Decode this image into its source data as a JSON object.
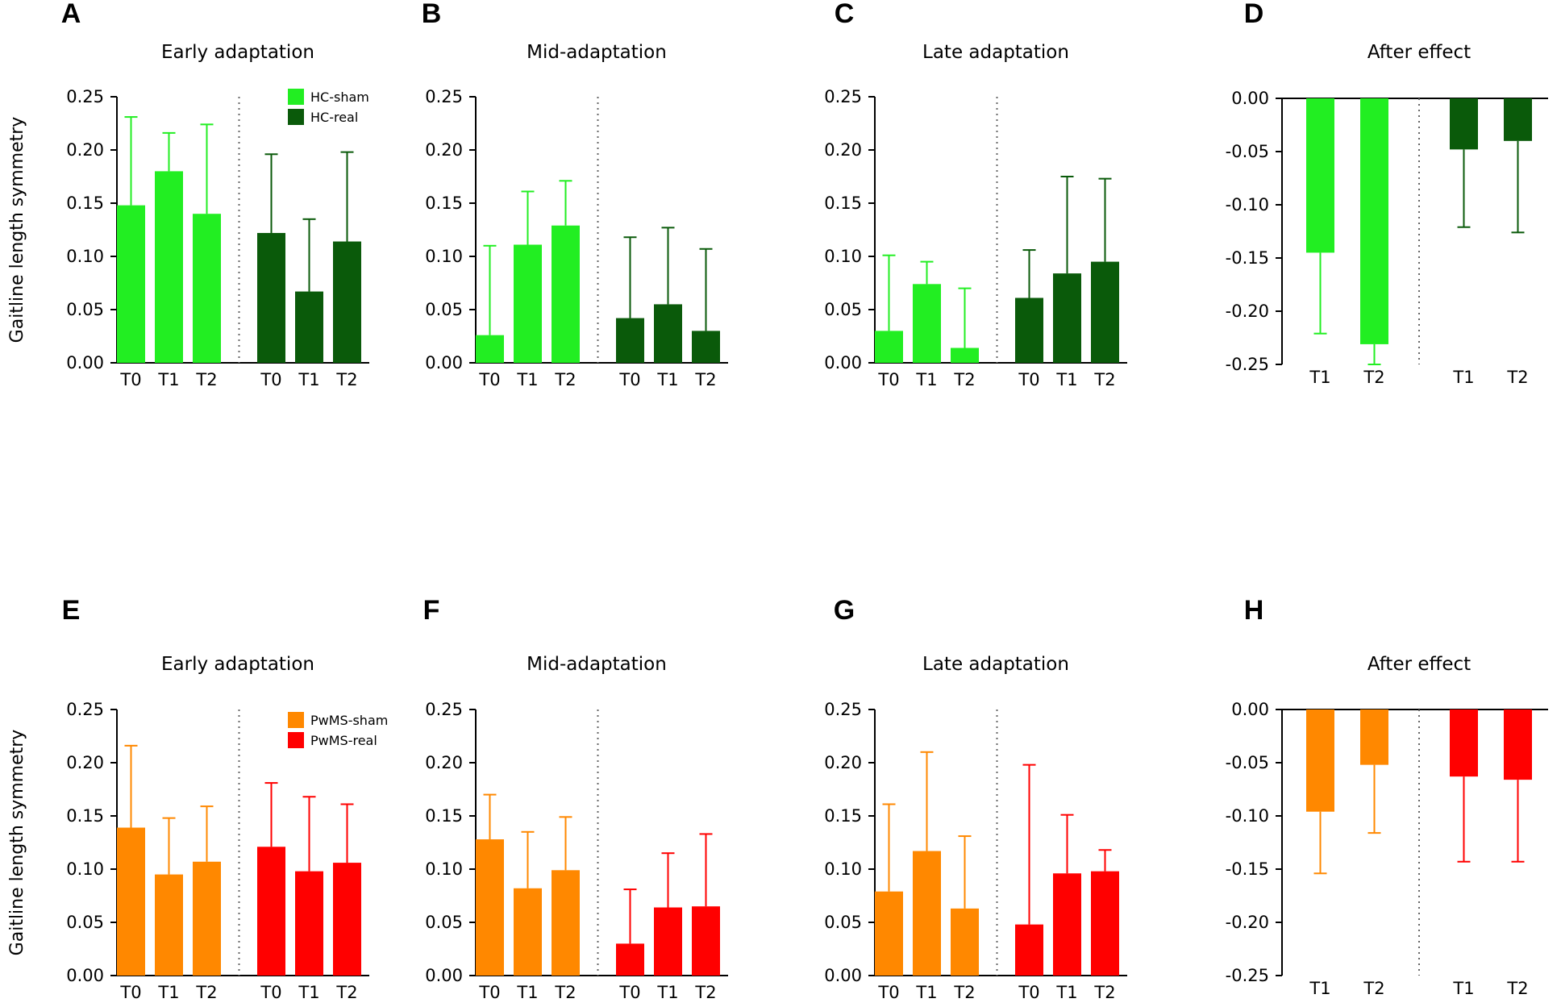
{
  "figure": {
    "colors": {
      "hc_sham": "#22ee22",
      "hc_real": "#0a5a0a",
      "pwms_sham": "#ff8800",
      "pwms_real": "#ff0000",
      "axis": "#000000",
      "divider": "#666666"
    }
  },
  "chart_data": [
    {
      "type": "bar",
      "panel": "A",
      "title": "Early adaptation",
      "ylabel": "Gaitline length symmetry",
      "ylim": [
        0,
        0.25
      ],
      "yticks": [
        "0.25",
        "0.20",
        "0.15",
        "0.10",
        "0.05",
        "0.00"
      ],
      "legend": [
        {
          "name": "HC-sham",
          "color": "#22ee22"
        },
        {
          "name": "HC-real",
          "color": "#0a5a0a"
        }
      ],
      "series": [
        {
          "name": "HC-sham",
          "color": "#22ee22",
          "categories": [
            "T0",
            "T1",
            "T2"
          ],
          "values": [
            0.148,
            0.18,
            0.14
          ],
          "errors": [
            0.083,
            0.036,
            0.084
          ]
        },
        {
          "name": "HC-real",
          "color": "#0a5a0a",
          "categories": [
            "T0",
            "T1",
            "T2"
          ],
          "values": [
            0.122,
            0.067,
            0.114
          ],
          "errors": [
            0.074,
            0.068,
            0.084
          ]
        }
      ]
    },
    {
      "type": "bar",
      "panel": "B",
      "title": "Mid-adaptation",
      "ylabel": "",
      "ylim": [
        0,
        0.25
      ],
      "yticks": [
        "0.25",
        "0.20",
        "0.15",
        "0.10",
        "0.05",
        "0.00"
      ],
      "legend": [],
      "series": [
        {
          "name": "HC-sham",
          "color": "#22ee22",
          "categories": [
            "T0",
            "T1",
            "T2"
          ],
          "values": [
            0.026,
            0.111,
            0.129
          ],
          "errors": [
            0.084,
            0.05,
            0.042
          ]
        },
        {
          "name": "HC-real",
          "color": "#0a5a0a",
          "categories": [
            "T0",
            "T1",
            "T2"
          ],
          "values": [
            0.042,
            0.055,
            0.03
          ],
          "errors": [
            0.076,
            0.072,
            0.077
          ]
        }
      ]
    },
    {
      "type": "bar",
      "panel": "C",
      "title": "Late adaptation",
      "ylabel": "",
      "ylim": [
        0,
        0.25
      ],
      "yticks": [
        "0.25",
        "0.20",
        "0.15",
        "0.10",
        "0.05",
        "0.00"
      ],
      "legend": [],
      "series": [
        {
          "name": "HC-sham",
          "color": "#22ee22",
          "categories": [
            "T0",
            "T1",
            "T2"
          ],
          "values": [
            0.03,
            0.074,
            0.014
          ],
          "errors": [
            0.071,
            0.021,
            0.056
          ]
        },
        {
          "name": "HC-real",
          "color": "#0a5a0a",
          "categories": [
            "T0",
            "T1",
            "T2"
          ],
          "values": [
            0.061,
            0.084,
            0.095
          ],
          "errors": [
            0.045,
            0.091,
            0.078
          ]
        }
      ]
    },
    {
      "type": "bar",
      "panel": "D",
      "title": "After effect",
      "ylabel": "",
      "ylim": [
        -0.25,
        0
      ],
      "yticks": [
        "0.00",
        "-0.05",
        "-0.10",
        "-0.15",
        "-0.20",
        "-0.25"
      ],
      "legend": [],
      "series": [
        {
          "name": "HC-sham",
          "color": "#22ee22",
          "categories": [
            "T1",
            "T2"
          ],
          "values": [
            -0.145,
            -0.231
          ],
          "errors": [
            0.076,
            0.019
          ]
        },
        {
          "name": "HC-real",
          "color": "#0a5a0a",
          "categories": [
            "T1",
            "T2"
          ],
          "values": [
            -0.048,
            -0.04
          ],
          "errors": [
            0.073,
            0.086
          ]
        }
      ]
    },
    {
      "type": "bar",
      "panel": "E",
      "title": "Early adaptation",
      "ylabel": "Gaitline length symmetry",
      "ylim": [
        0,
        0.25
      ],
      "yticks": [
        "0.25",
        "0.20",
        "0.15",
        "0.10",
        "0.05",
        "0.00"
      ],
      "legend": [
        {
          "name": "PwMS-sham",
          "color": "#ff8800"
        },
        {
          "name": "PwMS-real",
          "color": "#ff0000"
        }
      ],
      "series": [
        {
          "name": "PwMS-sham",
          "color": "#ff8800",
          "categories": [
            "T0",
            "T1",
            "T2"
          ],
          "values": [
            0.139,
            0.095,
            0.107
          ],
          "errors": [
            0.077,
            0.053,
            0.052
          ]
        },
        {
          "name": "PwMS-real",
          "color": "#ff0000",
          "categories": [
            "T0",
            "T1",
            "T2"
          ],
          "values": [
            0.121,
            0.098,
            0.106
          ],
          "errors": [
            0.06,
            0.07,
            0.055
          ]
        }
      ]
    },
    {
      "type": "bar",
      "panel": "F",
      "title": "Mid-adaptation",
      "ylabel": "",
      "ylim": [
        0,
        0.25
      ],
      "yticks": [
        "0.25",
        "0.20",
        "0.15",
        "0.10",
        "0.05",
        "0.00"
      ],
      "legend": [],
      "series": [
        {
          "name": "PwMS-sham",
          "color": "#ff8800",
          "categories": [
            "T0",
            "T1",
            "T2"
          ],
          "values": [
            0.128,
            0.082,
            0.099
          ],
          "errors": [
            0.042,
            0.053,
            0.05
          ]
        },
        {
          "name": "PwMS-real",
          "color": "#ff0000",
          "categories": [
            "T0",
            "T1",
            "T2"
          ],
          "values": [
            0.03,
            0.064,
            0.065
          ],
          "errors": [
            0.051,
            0.051,
            0.068
          ]
        }
      ]
    },
    {
      "type": "bar",
      "panel": "G",
      "title": "Late adaptation",
      "ylabel": "",
      "ylim": [
        0,
        0.25
      ],
      "yticks": [
        "0.25",
        "0.20",
        "0.15",
        "0.10",
        "0.05",
        "0.00"
      ],
      "legend": [],
      "series": [
        {
          "name": "PwMS-sham",
          "color": "#ff8800",
          "categories": [
            "T0",
            "T1",
            "T2"
          ],
          "values": [
            0.079,
            0.117,
            0.063
          ],
          "errors": [
            0.082,
            0.093,
            0.068
          ]
        },
        {
          "name": "PwMS-real",
          "color": "#ff0000",
          "categories": [
            "T0",
            "T1",
            "T2"
          ],
          "values": [
            0.048,
            0.096,
            0.098
          ],
          "errors": [
            0.15,
            0.055,
            0.02
          ]
        }
      ]
    },
    {
      "type": "bar",
      "panel": "H",
      "title": "After effect",
      "ylabel": "",
      "ylim": [
        -0.25,
        0
      ],
      "yticks": [
        "0.00",
        "-0.05",
        "-0.10",
        "-0.15",
        "-0.20",
        "-0.25"
      ],
      "legend": [],
      "series": [
        {
          "name": "PwMS-sham",
          "color": "#ff8800",
          "categories": [
            "T1",
            "T2"
          ],
          "values": [
            -0.096,
            -0.052
          ],
          "errors": [
            0.058,
            0.064
          ]
        },
        {
          "name": "PwMS-real",
          "color": "#ff0000",
          "categories": [
            "T1",
            "T2"
          ],
          "values": [
            -0.063,
            -0.066
          ],
          "errors": [
            0.08,
            0.077
          ]
        }
      ]
    }
  ]
}
